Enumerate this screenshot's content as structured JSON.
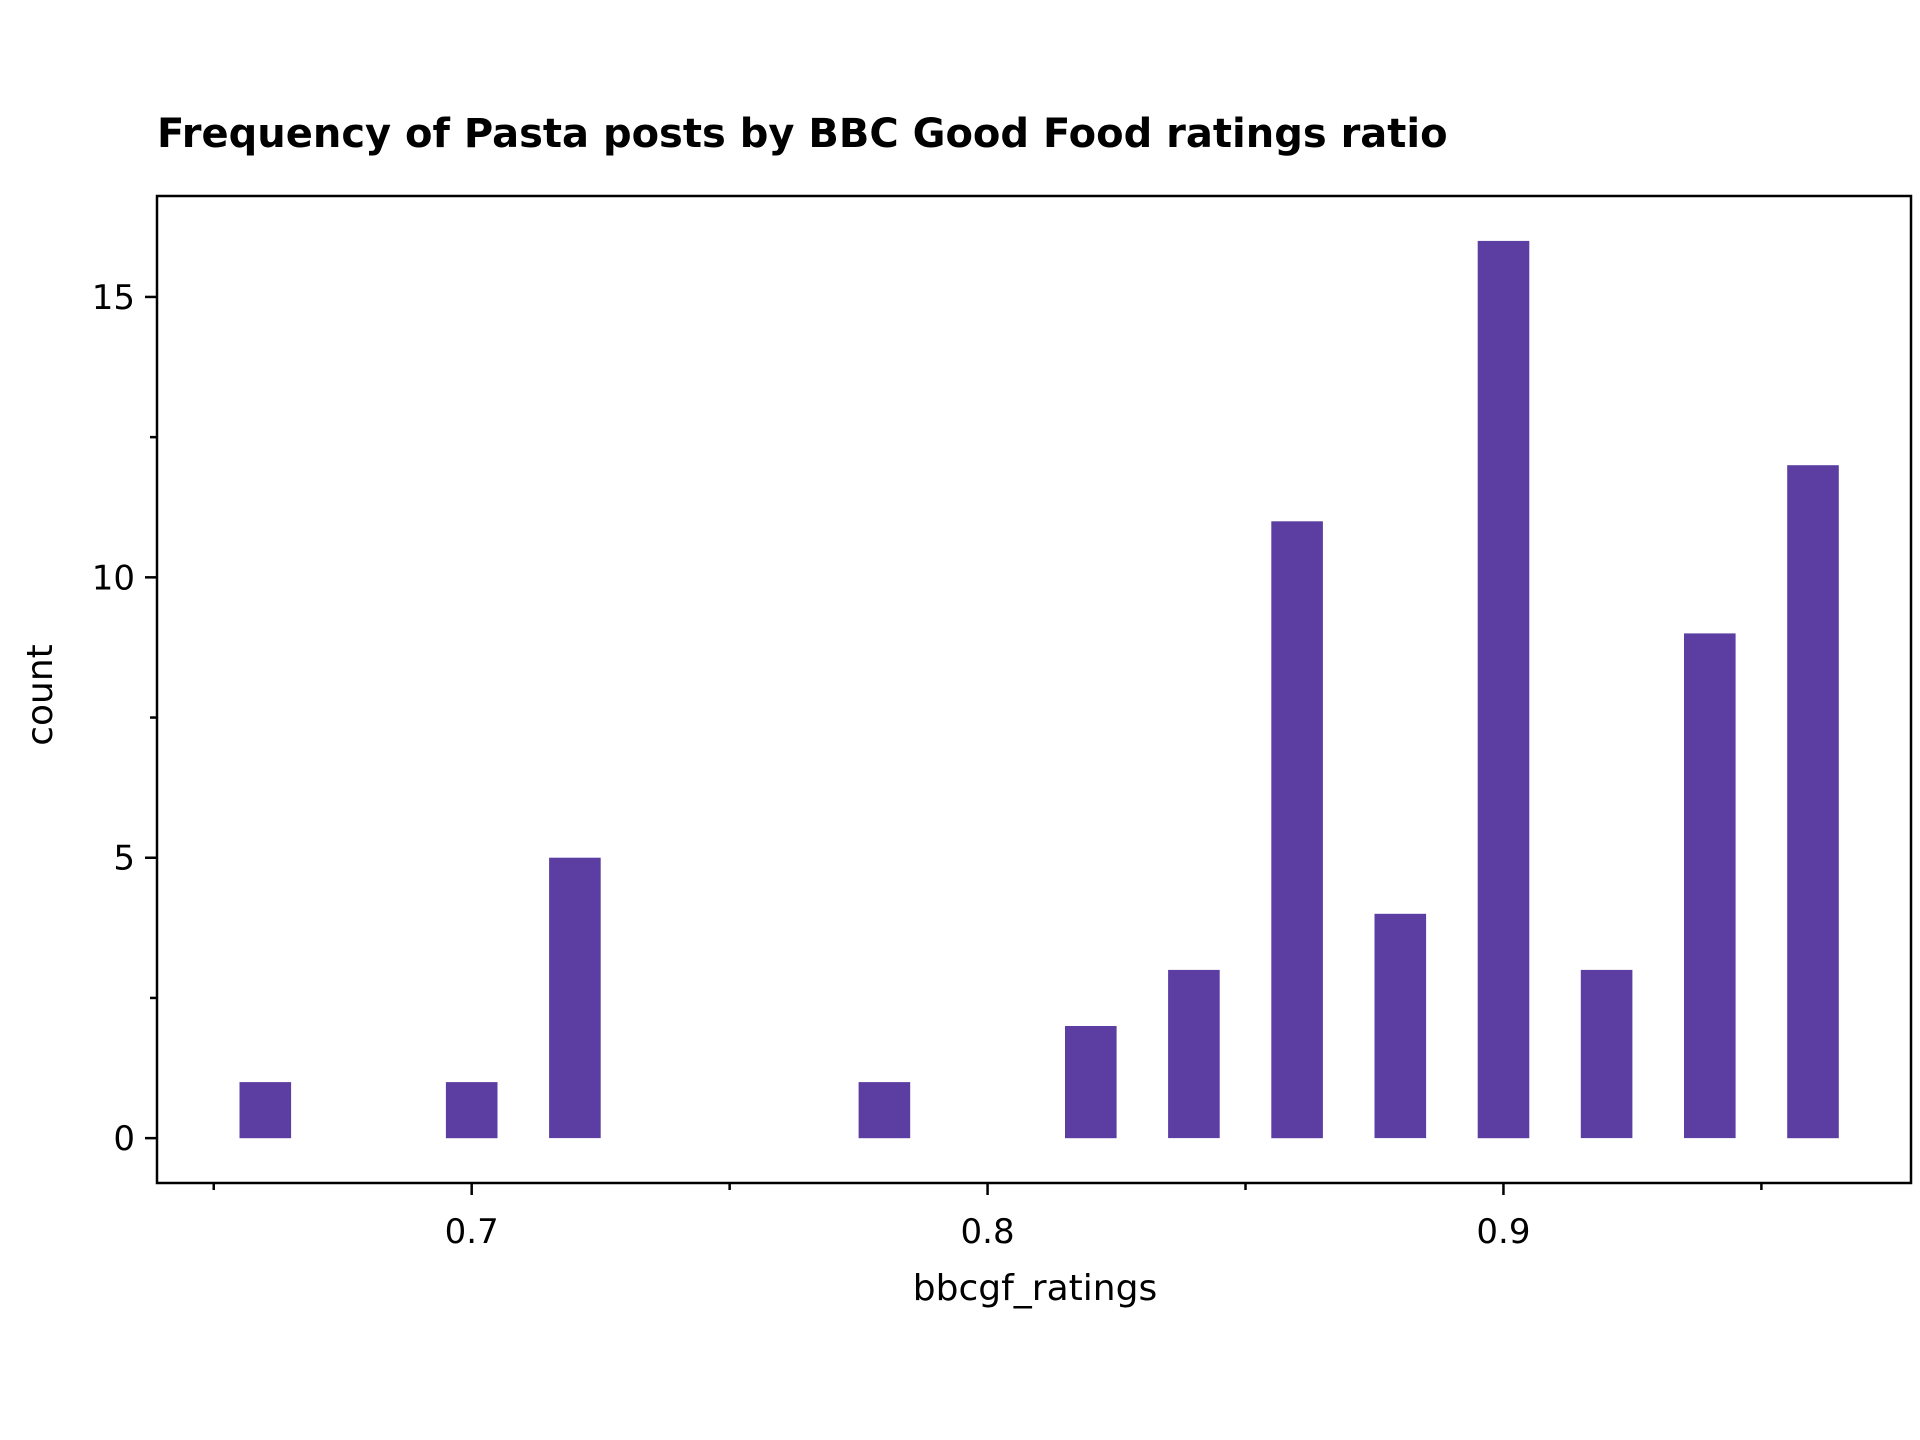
{
  "chart_data": {
    "type": "bar",
    "title": "Frequency of Pasta posts by BBC Good Food ratings ratio",
    "xlabel": "bbcgf_ratings",
    "ylabel": "count",
    "x": [
      0.66,
      0.7,
      0.72,
      0.78,
      0.82,
      0.84,
      0.86,
      0.88,
      0.9,
      0.92,
      0.94,
      0.96
    ],
    "values": [
      1,
      1,
      5,
      1,
      2,
      3,
      11,
      4,
      16,
      3,
      9,
      12
    ],
    "bar_width": 0.01,
    "xlim": [
      0.639,
      0.979
    ],
    "ylim": [
      -0.8,
      16.8
    ],
    "xticks": [
      0.7,
      0.8,
      0.9
    ],
    "xtick_labels": [
      "0.7",
      "0.8",
      "0.9"
    ],
    "x_minor_ticks": [
      0.65,
      0.75,
      0.85,
      0.95
    ],
    "yticks": [
      0,
      5,
      10,
      15
    ],
    "ytick_labels": [
      "0",
      "5",
      "10",
      "15"
    ],
    "y_minor_ticks": [
      2.5,
      7.5,
      12.5
    ],
    "bar_color": "#5c3ea3",
    "grid": false
  }
}
